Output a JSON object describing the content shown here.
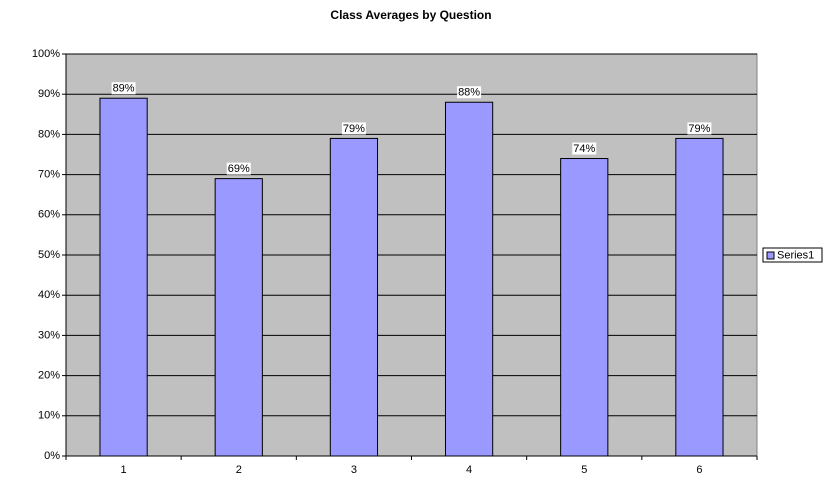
{
  "chart_data": {
    "type": "bar",
    "title": "Class Averages by Question",
    "categories": [
      "1",
      "2",
      "3",
      "4",
      "5",
      "6"
    ],
    "series": [
      {
        "name": "Series1",
        "color": "#9999ff",
        "values": [
          89,
          69,
          79,
          88,
          74,
          79
        ],
        "value_labels": [
          "89%",
          "69%",
          "79%",
          "88%",
          "74%",
          "79%"
        ]
      }
    ],
    "ylim": [
      0,
      100
    ],
    "yticks": [
      {
        "value": 0,
        "label": "0%"
      },
      {
        "value": 10,
        "label": "10%"
      },
      {
        "value": 20,
        "label": "20%"
      },
      {
        "value": 30,
        "label": "30%"
      },
      {
        "value": 40,
        "label": "40%"
      },
      {
        "value": 50,
        "label": "50%"
      },
      {
        "value": 60,
        "label": "60%"
      },
      {
        "value": 70,
        "label": "70%"
      },
      {
        "value": 80,
        "label": "80%"
      },
      {
        "value": 90,
        "label": "90%"
      },
      {
        "value": 100,
        "label": "100%"
      }
    ],
    "grid": true,
    "legend": "right",
    "plot_background": "#c0c0c0"
  }
}
